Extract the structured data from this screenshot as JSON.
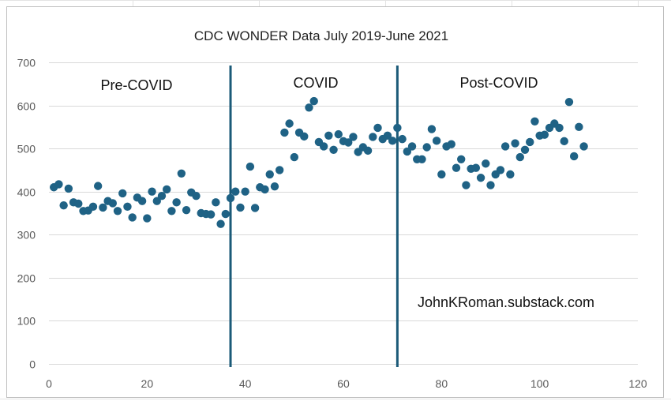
{
  "chart_data": {
    "type": "scatter",
    "title": "CDC WONDER Data July 2019-June 2021",
    "xlabel": "",
    "ylabel": "",
    "xlim": [
      0,
      120
    ],
    "ylim": [
      0,
      700
    ],
    "xticks": [
      "0",
      "20",
      "40",
      "60",
      "80",
      "100",
      "120"
    ],
    "yticks": [
      "0",
      "100",
      "200",
      "300",
      "400",
      "500",
      "600",
      "700"
    ],
    "grid": "horizontal",
    "legend": "none",
    "marker_color": "#1f6285",
    "line_color": "#1b5a78",
    "vertical_lines": [
      37,
      71
    ],
    "annotations": [
      "Pre-COVID",
      "COVID",
      "Post-COVID",
      "JohnKRoman.substack.com"
    ],
    "points": [
      [
        1,
        410
      ],
      [
        2,
        417
      ],
      [
        3,
        368
      ],
      [
        4,
        407
      ],
      [
        5,
        375
      ],
      [
        6,
        372
      ],
      [
        7,
        355
      ],
      [
        8,
        356
      ],
      [
        9,
        365
      ],
      [
        10,
        413
      ],
      [
        11,
        363
      ],
      [
        12,
        378
      ],
      [
        13,
        373
      ],
      [
        14,
        355
      ],
      [
        15,
        396
      ],
      [
        16,
        365
      ],
      [
        17,
        340
      ],
      [
        18,
        386
      ],
      [
        19,
        378
      ],
      [
        20,
        338
      ],
      [
        21,
        400
      ],
      [
        22,
        378
      ],
      [
        23,
        390
      ],
      [
        24,
        405
      ],
      [
        25,
        355
      ],
      [
        26,
        375
      ],
      [
        27,
        442
      ],
      [
        28,
        357
      ],
      [
        29,
        398
      ],
      [
        30,
        390
      ],
      [
        31,
        350
      ],
      [
        32,
        348
      ],
      [
        33,
        347
      ],
      [
        34,
        375
      ],
      [
        35,
        325
      ],
      [
        36,
        348
      ],
      [
        37,
        385
      ],
      [
        38,
        400
      ],
      [
        39,
        363
      ],
      [
        40,
        400
      ],
      [
        41,
        458
      ],
      [
        42,
        362
      ],
      [
        43,
        410
      ],
      [
        44,
        405
      ],
      [
        45,
        440
      ],
      [
        46,
        412
      ],
      [
        47,
        450
      ],
      [
        48,
        537
      ],
      [
        49,
        558
      ],
      [
        50,
        480
      ],
      [
        51,
        537
      ],
      [
        52,
        528
      ],
      [
        53,
        595
      ],
      [
        54,
        610
      ],
      [
        55,
        515
      ],
      [
        56,
        505
      ],
      [
        57,
        530
      ],
      [
        58,
        497
      ],
      [
        59,
        533
      ],
      [
        60,
        517
      ],
      [
        61,
        514
      ],
      [
        62,
        527
      ],
      [
        63,
        492
      ],
      [
        64,
        503
      ],
      [
        65,
        495
      ],
      [
        66,
        527
      ],
      [
        67,
        548
      ],
      [
        68,
        522
      ],
      [
        69,
        530
      ],
      [
        70,
        518
      ],
      [
        71,
        548
      ],
      [
        72,
        522
      ],
      [
        73,
        493
      ],
      [
        74,
        505
      ],
      [
        75,
        475
      ],
      [
        76,
        475
      ],
      [
        77,
        503
      ],
      [
        78,
        545
      ],
      [
        79,
        518
      ],
      [
        80,
        440
      ],
      [
        81,
        505
      ],
      [
        82,
        510
      ],
      [
        83,
        455
      ],
      [
        84,
        475
      ],
      [
        85,
        415
      ],
      [
        86,
        453
      ],
      [
        87,
        455
      ],
      [
        88,
        432
      ],
      [
        89,
        465
      ],
      [
        90,
        415
      ],
      [
        91,
        440
      ],
      [
        92,
        450
      ],
      [
        93,
        505
      ],
      [
        94,
        440
      ],
      [
        95,
        512
      ],
      [
        96,
        480
      ],
      [
        97,
        497
      ],
      [
        98,
        515
      ],
      [
        99,
        563
      ],
      [
        100,
        530
      ],
      [
        101,
        532
      ],
      [
        102,
        548
      ],
      [
        103,
        558
      ],
      [
        104,
        548
      ],
      [
        105,
        517
      ],
      [
        106,
        608
      ],
      [
        107,
        482
      ],
      [
        108,
        550
      ],
      [
        109,
        505
      ]
    ]
  }
}
